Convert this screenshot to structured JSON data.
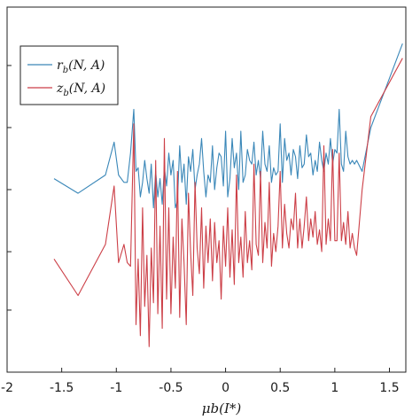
{
  "chart_data": {
    "type": "line",
    "xlabel": "μb(I*)",
    "ylabel": "",
    "title": "",
    "xlim": [
      -2,
      1.65
    ],
    "ylim": [
      0,
      1
    ],
    "x_ticks": [
      -2,
      -1.5,
      -1,
      -0.5,
      0,
      0.5,
      1,
      1.5
    ],
    "x_tick_labels": [
      "-2",
      "-1.5",
      "-1",
      "-0.5",
      "0",
      "0.5",
      "1",
      "1.5"
    ],
    "y_ticks": [
      0.17,
      0.33,
      0.5,
      0.67,
      0.84
    ],
    "grid": false,
    "legend_position": "top-left",
    "series": [
      {
        "name": "r_b(N, A)",
        "label_main": "r",
        "label_sub": "b",
        "label_args": "(N, A)",
        "color": "#3a87b8",
        "x": [
          -1.57,
          -1.35,
          -1.1,
          -1.02,
          -0.98,
          -0.93,
          -0.9,
          -0.87,
          -0.84,
          -0.82,
          -0.8,
          -0.78,
          -0.76,
          -0.74,
          -0.72,
          -0.7,
          -0.68,
          -0.66,
          -0.64,
          -0.62,
          -0.6,
          -0.58,
          -0.56,
          -0.54,
          -0.52,
          -0.5,
          -0.48,
          -0.46,
          -0.44,
          -0.42,
          -0.4,
          -0.38,
          -0.36,
          -0.34,
          -0.32,
          -0.3,
          -0.28,
          -0.26,
          -0.24,
          -0.22,
          -0.2,
          -0.18,
          -0.16,
          -0.14,
          -0.12,
          -0.1,
          -0.08,
          -0.06,
          -0.04,
          -0.02,
          0.0,
          0.02,
          0.04,
          0.06,
          0.08,
          0.1,
          0.12,
          0.14,
          0.16,
          0.18,
          0.2,
          0.22,
          0.24,
          0.26,
          0.28,
          0.3,
          0.32,
          0.34,
          0.36,
          0.38,
          0.4,
          0.42,
          0.44,
          0.46,
          0.48,
          0.5,
          0.52,
          0.54,
          0.56,
          0.58,
          0.6,
          0.62,
          0.64,
          0.66,
          0.68,
          0.7,
          0.72,
          0.74,
          0.76,
          0.78,
          0.8,
          0.82,
          0.84,
          0.86,
          0.88,
          0.9,
          0.92,
          0.94,
          0.96,
          0.98,
          1.0,
          1.02,
          1.04,
          1.06,
          1.08,
          1.1,
          1.12,
          1.14,
          1.16,
          1.18,
          1.2,
          1.25,
          1.33,
          1.62
        ],
        "y": [
          0.53,
          0.49,
          0.54,
          0.63,
          0.54,
          0.52,
          0.52,
          0.6,
          0.72,
          0.55,
          0.56,
          0.48,
          0.52,
          0.58,
          0.53,
          0.49,
          0.57,
          0.45,
          0.55,
          0.48,
          0.53,
          0.46,
          0.56,
          0.51,
          0.6,
          0.54,
          0.58,
          0.45,
          0.47,
          0.62,
          0.52,
          0.57,
          0.46,
          0.59,
          0.55,
          0.61,
          0.5,
          0.54,
          0.57,
          0.64,
          0.55,
          0.48,
          0.54,
          0.52,
          0.62,
          0.5,
          0.56,
          0.6,
          0.59,
          0.51,
          0.66,
          0.48,
          0.53,
          0.64,
          0.56,
          0.6,
          0.5,
          0.66,
          0.52,
          0.54,
          0.61,
          0.58,
          0.57,
          0.63,
          0.54,
          0.58,
          0.53,
          0.66,
          0.57,
          0.55,
          0.62,
          0.52,
          0.56,
          0.54,
          0.55,
          0.68,
          0.52,
          0.64,
          0.58,
          0.6,
          0.54,
          0.61,
          0.59,
          0.53,
          0.62,
          0.56,
          0.57,
          0.65,
          0.59,
          0.6,
          0.54,
          0.58,
          0.55,
          0.63,
          0.58,
          0.55,
          0.6,
          0.57,
          0.64,
          0.57,
          0.61,
          0.6,
          0.72,
          0.57,
          0.55,
          0.66,
          0.59,
          0.57,
          0.58,
          0.57,
          0.58,
          0.55,
          0.67,
          0.9
        ]
      },
      {
        "name": "z_b(N, A)",
        "label_main": "z",
        "label_sub": "b",
        "label_args": "(N, A)",
        "color": "#cc3f47",
        "x": [
          -1.57,
          -1.35,
          -1.1,
          -1.02,
          -0.98,
          -0.93,
          -0.9,
          -0.87,
          -0.84,
          -0.82,
          -0.8,
          -0.78,
          -0.76,
          -0.74,
          -0.72,
          -0.7,
          -0.68,
          -0.66,
          -0.64,
          -0.62,
          -0.6,
          -0.58,
          -0.56,
          -0.54,
          -0.52,
          -0.5,
          -0.48,
          -0.46,
          -0.44,
          -0.42,
          -0.4,
          -0.38,
          -0.36,
          -0.34,
          -0.32,
          -0.3,
          -0.28,
          -0.26,
          -0.24,
          -0.22,
          -0.2,
          -0.18,
          -0.16,
          -0.14,
          -0.12,
          -0.1,
          -0.08,
          -0.06,
          -0.04,
          -0.02,
          0.0,
          0.02,
          0.04,
          0.06,
          0.08,
          0.1,
          0.12,
          0.14,
          0.16,
          0.18,
          0.2,
          0.22,
          0.24,
          0.26,
          0.28,
          0.3,
          0.32,
          0.34,
          0.36,
          0.38,
          0.4,
          0.42,
          0.44,
          0.46,
          0.48,
          0.5,
          0.52,
          0.54,
          0.56,
          0.58,
          0.6,
          0.62,
          0.64,
          0.66,
          0.68,
          0.7,
          0.72,
          0.74,
          0.76,
          0.78,
          0.8,
          0.82,
          0.84,
          0.86,
          0.88,
          0.9,
          0.92,
          0.94,
          0.96,
          0.98,
          1.0,
          1.02,
          1.04,
          1.06,
          1.08,
          1.1,
          1.12,
          1.14,
          1.16,
          1.18,
          1.2,
          1.25,
          1.33,
          1.62
        ],
        "y": [
          0.31,
          0.21,
          0.35,
          0.51,
          0.3,
          0.35,
          0.3,
          0.29,
          0.68,
          0.13,
          0.31,
          0.1,
          0.45,
          0.18,
          0.32,
          0.07,
          0.34,
          0.19,
          0.58,
          0.16,
          0.4,
          0.12,
          0.64,
          0.2,
          0.45,
          0.16,
          0.37,
          0.23,
          0.55,
          0.15,
          0.42,
          0.3,
          0.13,
          0.49,
          0.33,
          0.21,
          0.52,
          0.34,
          0.27,
          0.45,
          0.23,
          0.4,
          0.3,
          0.42,
          0.25,
          0.41,
          0.3,
          0.36,
          0.2,
          0.4,
          0.29,
          0.45,
          0.26,
          0.39,
          0.24,
          0.54,
          0.3,
          0.37,
          0.26,
          0.44,
          0.3,
          0.36,
          0.28,
          0.57,
          0.35,
          0.32,
          0.55,
          0.3,
          0.41,
          0.34,
          0.52,
          0.29,
          0.38,
          0.33,
          0.4,
          0.55,
          0.34,
          0.46,
          0.38,
          0.34,
          0.42,
          0.39,
          0.49,
          0.34,
          0.42,
          0.34,
          0.4,
          0.48,
          0.36,
          0.42,
          0.37,
          0.44,
          0.35,
          0.39,
          0.33,
          0.62,
          0.35,
          0.42,
          0.36,
          0.61,
          0.36,
          0.36,
          0.6,
          0.36,
          0.41,
          0.35,
          0.44,
          0.34,
          0.38,
          0.34,
          0.32,
          0.5,
          0.7,
          0.86
        ]
      }
    ]
  }
}
